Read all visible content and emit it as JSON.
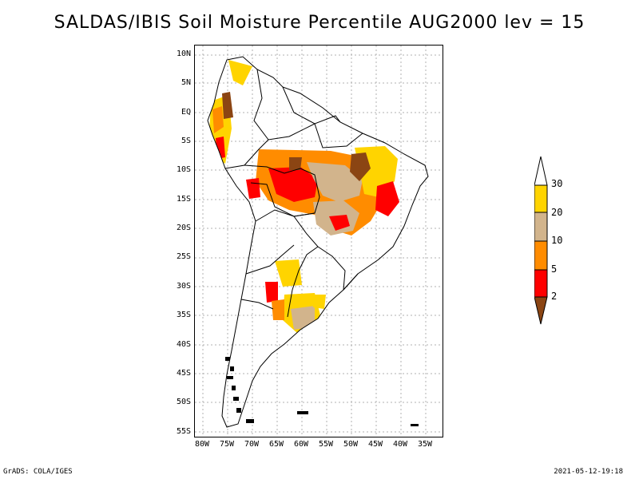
{
  "map": {
    "title": "SALDAS/IBIS Soil Moisture Percentile AUG2000 lev = 15",
    "latitude_labels": [
      "10N",
      "5N",
      "EQ",
      "5S",
      "10S",
      "15S",
      "20S",
      "25S",
      "30S",
      "35S",
      "40S",
      "45S",
      "50S",
      "55S"
    ],
    "longitude_labels": [
      "80W",
      "75W",
      "70W",
      "65W",
      "60W",
      "55W",
      "50W",
      "45W",
      "40W",
      "35W"
    ],
    "legend": {
      "labels": [
        "2",
        "5",
        "10",
        "20",
        "30"
      ],
      "colors": [
        "#8B4513",
        "#FF0000",
        "#FF8C00",
        "#D2B48C",
        "#FFD400",
        "#FFFFFF"
      ]
    },
    "colors": {
      "brown": "#8B4513",
      "red": "#FF0000",
      "orange": "#FF8C00",
      "tan": "#D2B48C",
      "yellow": "#FFD400"
    },
    "footer": {
      "left": "GrADS: COLA/IGES",
      "right": "2021-05-12-19:18"
    }
  }
}
